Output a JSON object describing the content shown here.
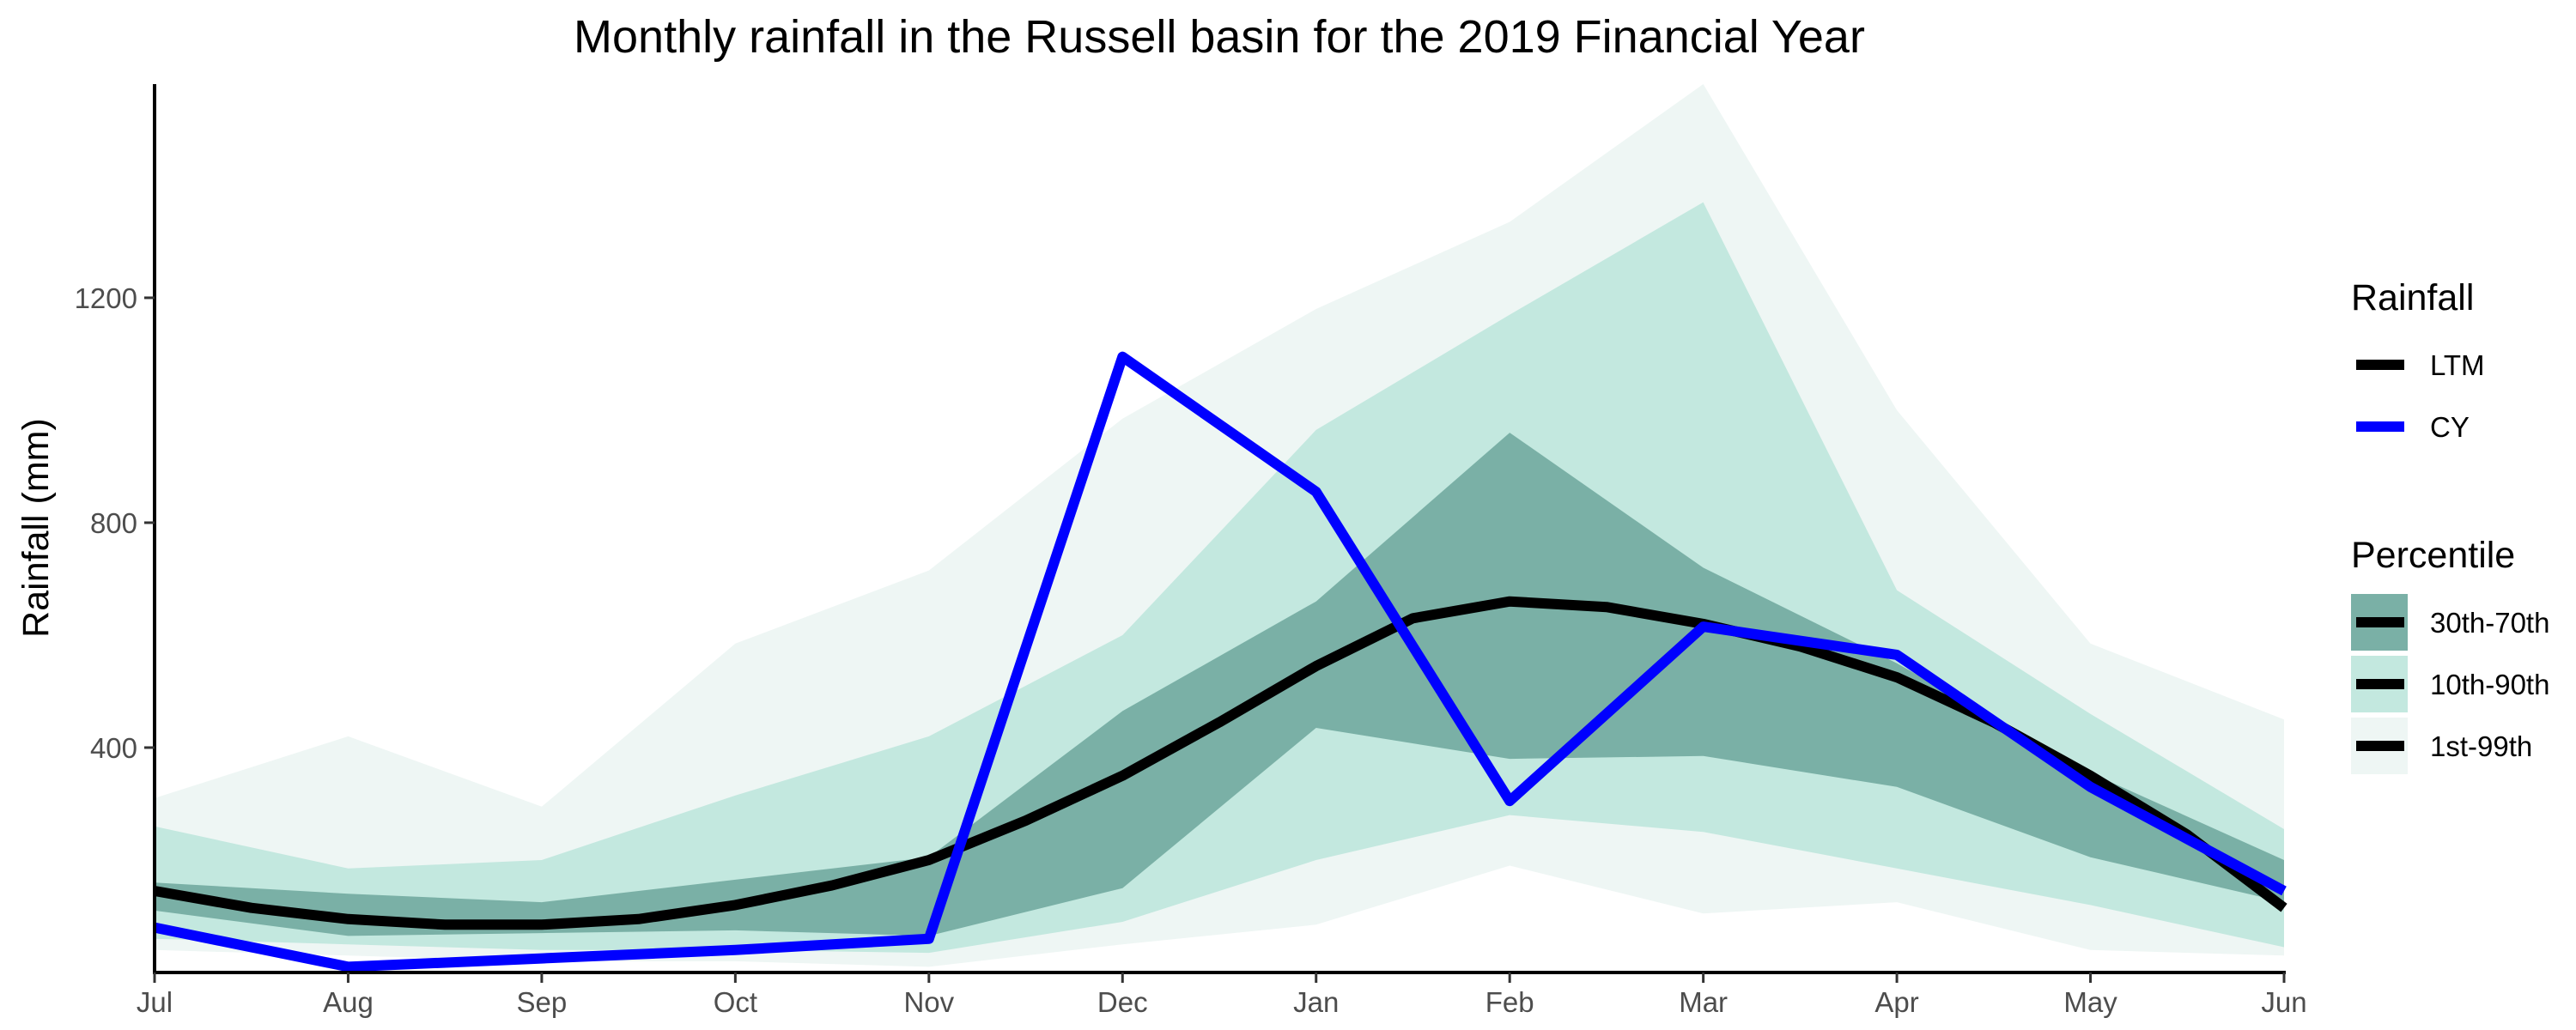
{
  "chart_data": {
    "type": "area",
    "title": "Monthly rainfall in the Russell basin for the 2019 Financial Year",
    "xlabel": "",
    "ylabel": "Rainfall (mm)",
    "categories": [
      "Jul",
      "Aug",
      "Sep",
      "Oct",
      "Nov",
      "Dec",
      "Jan",
      "Feb",
      "Mar",
      "Apr",
      "May",
      "Jun"
    ],
    "ylim": [
      0,
      1580
    ],
    "yticks": [
      400,
      800,
      1200
    ],
    "grid": false,
    "legend_placement": "right",
    "bands": [
      {
        "name": "1st-99th",
        "color": "#eef6f4",
        "lower": [
          40,
          30,
          20,
          20,
          10,
          50,
          85,
          190,
          105,
          125,
          40,
          30
        ],
        "upper": [
          310,
          420,
          295,
          585,
          715,
          985,
          1180,
          1335,
          1580,
          1000,
          585,
          450
        ]
      },
      {
        "name": "10th-90th",
        "color": "#c3e8df",
        "lower": [
          60,
          50,
          40,
          40,
          35,
          90,
          200,
          280,
          250,
          185,
          120,
          45
        ],
        "upper": [
          260,
          185,
          200,
          315,
          420,
          600,
          965,
          1170,
          1370,
          680,
          460,
          255
        ]
      },
      {
        "name": "30th-70th",
        "color": "#7ab0a6",
        "lower": [
          110,
          65,
          70,
          75,
          65,
          150,
          435,
          380,
          385,
          330,
          205,
          125
        ],
        "upper": [
          160,
          140,
          125,
          165,
          205,
          465,
          660,
          960,
          720,
          550,
          355,
          200
        ]
      }
    ],
    "series": [
      {
        "name": "LTM",
        "color": "#000000",
        "x": [
          0,
          0.5,
          1,
          1.5,
          2,
          2.5,
          3,
          3.5,
          4,
          4.5,
          5,
          5.5,
          6,
          6.5,
          7,
          7.5,
          8,
          8.5,
          9,
          9.5,
          10,
          10.5,
          11
        ],
        "values": [
          145,
          115,
          95,
          85,
          85,
          95,
          120,
          155,
          200,
          270,
          350,
          445,
          545,
          630,
          660,
          650,
          620,
          580,
          525,
          445,
          350,
          245,
          115
        ]
      },
      {
        "name": "CY",
        "color": "#0000ff",
        "x": [
          0,
          1,
          2,
          3,
          4,
          5,
          6,
          7,
          8,
          9,
          10,
          11
        ],
        "values": [
          80,
          10,
          25,
          40,
          60,
          1095,
          855,
          305,
          615,
          565,
          330,
          145
        ]
      }
    ],
    "legends": [
      {
        "title": "Rainfall",
        "entries": [
          "LTM",
          "CY"
        ]
      },
      {
        "title": "Percentile",
        "entries": [
          "30th-70th",
          "10th-90th",
          "1st-99th"
        ]
      }
    ]
  }
}
